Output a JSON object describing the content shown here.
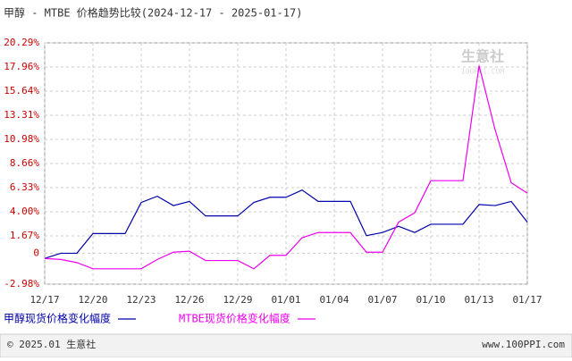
{
  "chart_data": {
    "type": "line",
    "title": "甲醇 - MTBE 价格趋势比较(2024-12-17 - 2025-01-17)",
    "categories": [
      "12/17",
      null,
      null,
      "12/20",
      null,
      null,
      "12/23",
      null,
      null,
      "12/26",
      null,
      null,
      "12/29",
      null,
      null,
      "01/01",
      null,
      null,
      "01/04",
      null,
      null,
      "01/07",
      null,
      null,
      "01/10",
      null,
      null,
      "01/13",
      null,
      null,
      "01/17"
    ],
    "series": [
      {
        "name": "甲醇现货价格变化幅度",
        "color": "#0000aa",
        "values": [
          -0.5,
          0,
          0,
          1.9,
          1.9,
          1.9,
          4.9,
          5.5,
          4.6,
          5.0,
          3.6,
          3.6,
          3.6,
          4.9,
          5.4,
          5.4,
          6.1,
          5.0,
          5.0,
          5.0,
          1.7,
          2.0,
          2.6,
          2.0,
          2.8,
          2.8,
          2.8,
          4.7,
          4.6,
          5.0,
          3.0
        ]
      },
      {
        "name": "MTBE现货价格变化幅度",
        "color": "#ee00ee",
        "values": [
          -0.5,
          -0.6,
          -0.9,
          -1.5,
          -1.5,
          -1.5,
          -1.5,
          -0.6,
          0.1,
          0.2,
          -0.7,
          -0.7,
          -0.7,
          -1.5,
          -0.2,
          -0.2,
          1.5,
          2.0,
          2.0,
          2.0,
          0.1,
          0.1,
          3.0,
          3.9,
          7.0,
          7.0,
          7.0,
          18.1,
          11.9,
          6.8,
          5.8
        ]
      }
    ],
    "ylim": [
      -2.98,
      20.29
    ],
    "yticks": [
      {
        "value": -2.98,
        "label": "-2.98%"
      },
      0,
      {
        "value": 1.67,
        "label": "1.67%"
      },
      {
        "value": 4.0,
        "label": "4.00%"
      },
      {
        "value": 6.33,
        "label": "6.33%"
      },
      {
        "value": 8.66,
        "label": "8.66%"
      },
      {
        "value": 10.98,
        "label": "10.98%"
      },
      {
        "value": 13.31,
        "label": "13.31%"
      },
      {
        "value": 15.64,
        "label": "15.64%"
      },
      {
        "value": 17.96,
        "label": "17.96%"
      },
      {
        "value": 20.29,
        "label": "20.29%"
      }
    ],
    "grid": true,
    "watermark": "生意社",
    "watermark_sub": "100PPI.COM",
    "footer_left": "© 2025.01 生意社",
    "footer_right": "www.100PPI.com"
  }
}
